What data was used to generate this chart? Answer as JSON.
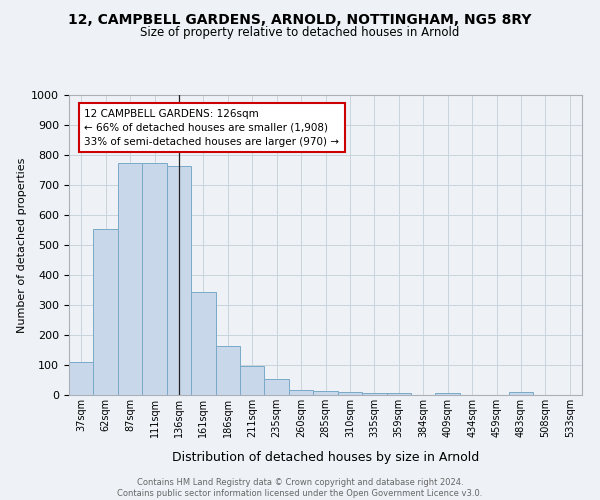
{
  "title1": "12, CAMPBELL GARDENS, ARNOLD, NOTTINGHAM, NG5 8RY",
  "title2": "Size of property relative to detached houses in Arnold",
  "xlabel": "Distribution of detached houses by size in Arnold",
  "ylabel": "Number of detached properties",
  "categories": [
    "37sqm",
    "62sqm",
    "87sqm",
    "111sqm",
    "136sqm",
    "161sqm",
    "186sqm",
    "211sqm",
    "235sqm",
    "260sqm",
    "285sqm",
    "310sqm",
    "335sqm",
    "359sqm",
    "384sqm",
    "409sqm",
    "434sqm",
    "459sqm",
    "483sqm",
    "508sqm",
    "533sqm"
  ],
  "values": [
    111,
    555,
    775,
    775,
    765,
    345,
    163,
    97,
    55,
    18,
    13,
    11,
    8,
    6,
    0,
    8,
    0,
    0,
    10,
    0,
    0
  ],
  "bar_color": "#c8d8ea",
  "bar_edge_color": "#7aaac8",
  "grid_color": "#c8d4dc",
  "background_color": "#eef2f6",
  "property_line_x": 4,
  "annotation_text": "12 CAMPBELL GARDENS: 126sqm\n← 66% of detached houses are smaller (1,908)\n33% of semi-detached houses are larger (970) →",
  "annotation_box_color": "#ffffff",
  "annotation_edge_color": "#cc0000",
  "footer_text": "Contains HM Land Registry data © Crown copyright and database right 2024.\nContains public sector information licensed under the Open Government Licence v3.0.",
  "ylim": [
    0,
    1000
  ],
  "yticks": [
    0,
    100,
    200,
    300,
    400,
    500,
    600,
    700,
    800,
    900,
    1000
  ]
}
